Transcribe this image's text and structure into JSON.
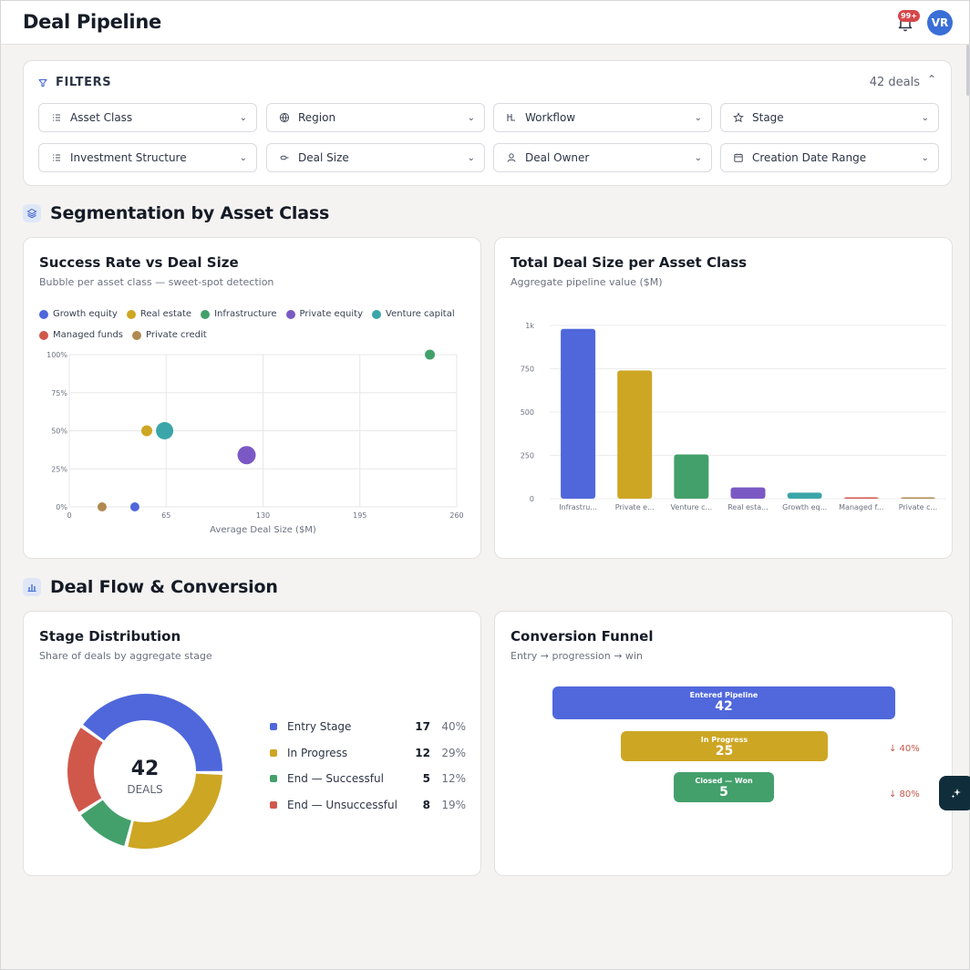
{
  "header": {
    "title": "Deal Pipeline",
    "notif_count": "99+",
    "avatar_initials": "VR"
  },
  "filters": {
    "title": "FILTERS",
    "count_label": "42 deals",
    "items": [
      {
        "label": "Asset Class",
        "icon": "list-icon"
      },
      {
        "label": "Region",
        "icon": "globe-icon"
      },
      {
        "label": "Workflow",
        "icon": "workflow-icon"
      },
      {
        "label": "Stage",
        "icon": "star-icon"
      },
      {
        "label": "Investment Structure",
        "icon": "list-icon"
      },
      {
        "label": "Deal Size",
        "icon": "size-icon"
      },
      {
        "label": "Deal Owner",
        "icon": "user-icon"
      },
      {
        "label": "Creation Date Range",
        "icon": "calendar-icon"
      }
    ]
  },
  "sections": {
    "segmentation": "Segmentation by Asset Class",
    "flow": "Deal Flow & Conversion"
  },
  "success_chart": {
    "title": "Success Rate vs Deal Size",
    "subtitle": "Bubble per asset class — sweet-spot detection",
    "xlabel": "Average Deal Size ($M)",
    "xticks": [
      "0",
      "65",
      "130",
      "195",
      "260"
    ],
    "yticks": [
      "0%",
      "25%",
      "50%",
      "75%",
      "100%"
    ]
  },
  "size_chart": {
    "title": "Total Deal Size per Asset Class",
    "subtitle": "Aggregate pipeline value ($M)",
    "yticks": [
      "0",
      "250",
      "500",
      "750",
      "1k"
    ]
  },
  "stage_dist": {
    "title": "Stage Distribution",
    "subtitle": "Share of deals by aggregate stage",
    "center_value": "42",
    "center_label": "DEALS",
    "rows": [
      {
        "label": "Entry Stage",
        "count": "17",
        "pct": "40%",
        "color": "#4f67db"
      },
      {
        "label": "In Progress",
        "count": "12",
        "pct": "29%",
        "color": "#cda624"
      },
      {
        "label": "End — Successful",
        "count": "5",
        "pct": "12%",
        "color": "#43a06b"
      },
      {
        "label": "End — Unsuccessful",
        "count": "8",
        "pct": "19%",
        "color": "#d0584b"
      }
    ]
  },
  "funnel": {
    "title": "Conversion Funnel",
    "subtitle": "Entry → progression → win",
    "stages": [
      {
        "label": "Entered Pipeline",
        "value": "42",
        "color": "#5068dc"
      },
      {
        "label": "In Progress",
        "value": "25",
        "color": "#cda624",
        "drop": "↓ 40%"
      },
      {
        "label": "Closed — Won",
        "value": "5",
        "color": "#43a06b",
        "drop": "↓ 80%"
      }
    ]
  },
  "chart_data": [
    {
      "type": "scatter",
      "title": "Success Rate vs Deal Size",
      "subtitle": "Bubble per asset class — sweet-spot detection",
      "xlabel": "Average Deal Size ($M)",
      "ylabel": "",
      "xlim": [
        0,
        260
      ],
      "ylim": [
        0,
        100
      ],
      "grid": true,
      "legend": "top",
      "series": [
        {
          "name": "Growth equity",
          "color": "#4f67db",
          "x": 44,
          "y": 0,
          "size": 10
        },
        {
          "name": "Real estate",
          "color": "#cda624",
          "x": 52,
          "y": 50,
          "size": 12
        },
        {
          "name": "Infrastructure",
          "color": "#43a06b",
          "x": 242,
          "y": 100,
          "size": 11
        },
        {
          "name": "Private equity",
          "color": "#7b59c4",
          "x": 119,
          "y": 34,
          "size": 20
        },
        {
          "name": "Venture capital",
          "color": "#3aa6a9",
          "x": 64,
          "y": 50,
          "size": 19
        },
        {
          "name": "Managed funds",
          "color": "#d0584b",
          "x": 0,
          "y": 0,
          "size": 0
        },
        {
          "name": "Private credit",
          "color": "#b08a4f",
          "x": 22,
          "y": 0,
          "size": 10
        }
      ]
    },
    {
      "type": "bar",
      "title": "Total Deal Size per Asset Class",
      "subtitle": "Aggregate pipeline value ($M)",
      "categories": [
        "Infrastru...",
        "Private e...",
        "Venture c...",
        "Real esta...",
        "Growth eq...",
        "Managed f...",
        "Private c..."
      ],
      "values": [
        980,
        740,
        255,
        65,
        35,
        5,
        3
      ],
      "colors": [
        "#4f67db",
        "#cda624",
        "#43a06b",
        "#7b59c4",
        "#3aa6a9",
        "#d0584b",
        "#b08a4f"
      ],
      "ylim": [
        0,
        1000
      ],
      "grid": true
    },
    {
      "type": "pie",
      "title": "Stage Distribution",
      "categories": [
        "Entry Stage",
        "In Progress",
        "End — Successful",
        "End — Unsuccessful"
      ],
      "values": [
        17,
        12,
        5,
        8
      ],
      "colors": [
        "#4f67db",
        "#cda624",
        "#43a06b",
        "#d0584b"
      ]
    }
  ]
}
